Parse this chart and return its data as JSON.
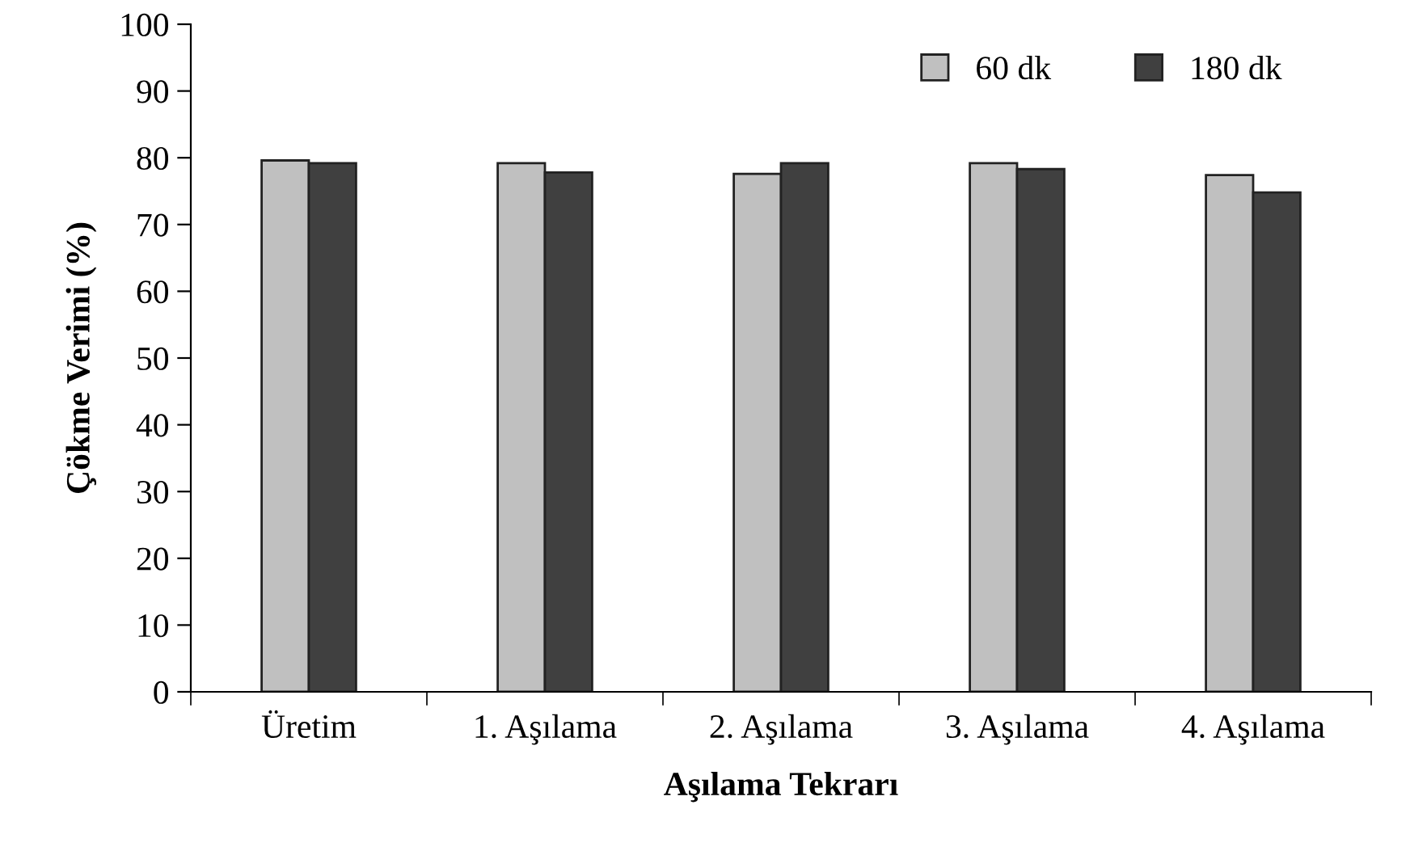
{
  "chart_data": {
    "type": "bar",
    "xlabel": "Aşılama Tekrarı",
    "ylabel": "Çökme Verimi (%)",
    "categories": [
      "Üretim",
      "1. Aşılama",
      "2. Aşılama",
      "3. Aşılama",
      "4. Aşılama"
    ],
    "series": [
      {
        "name": "60 dk",
        "color": "#c0c0c0",
        "values": [
          79.6,
          79.2,
          77.6,
          79.2,
          77.4
        ]
      },
      {
        "name": "180 dk",
        "color": "#404040",
        "values": [
          79.2,
          77.8,
          79.2,
          78.3,
          74.8
        ]
      }
    ],
    "ylim": [
      0,
      100
    ],
    "yticks": [
      0,
      10,
      20,
      30,
      40,
      50,
      60,
      70,
      80,
      90,
      100
    ],
    "grid": false,
    "legend": "top right"
  }
}
